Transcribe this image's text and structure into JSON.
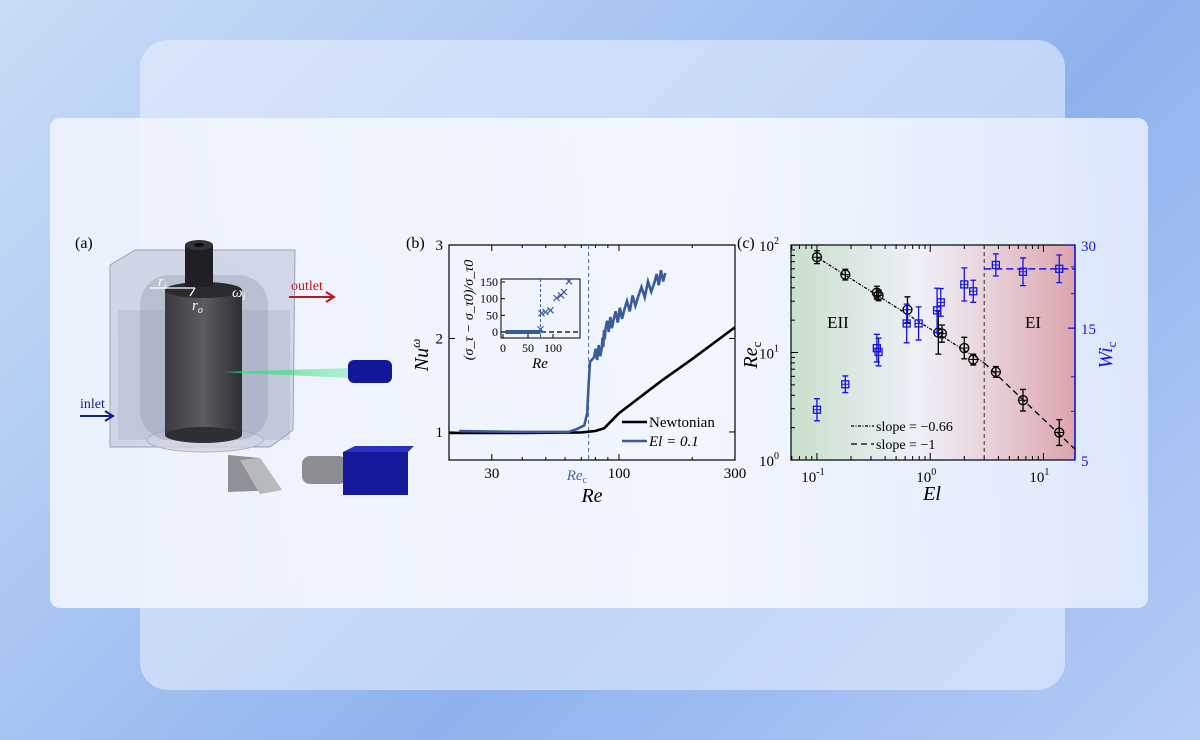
{
  "panel_a": {
    "label": "(a)",
    "r_i": "r",
    "r_i_sub": "i",
    "r_o": "r",
    "r_o_sub": "o",
    "omega": "ω",
    "omega_sub": "i",
    "outlet": "outlet",
    "inlet": "inlet",
    "colors": {
      "outlet": "#c0131c",
      "inlet": "#13208a",
      "laser": "#22d36a",
      "device": "#13189a"
    }
  },
  "chart_data": [
    {
      "id": "b",
      "panel_label": "(b)",
      "type": "line",
      "xlabel": "Re",
      "ylabel": "Nu",
      "ylabel_sup": "ω",
      "xscale": "log",
      "xlim": [
        20,
        300
      ],
      "ylim": [
        0.7,
        3
      ],
      "xticks": [
        30,
        100,
        300
      ],
      "xtick_labels": [
        "30",
        "100",
        "300"
      ],
      "yticks": [
        1,
        2,
        3
      ],
      "ytick_labels": [
        "1",
        "2",
        "3"
      ],
      "vline": {
        "x": 75,
        "label": "Re",
        "label_sub": "c",
        "color": "#4a67a8"
      },
      "legend_position": "bottom-right",
      "series": [
        {
          "name": "Newtonian",
          "color": "#000000",
          "x": [
            20,
            40,
            70,
            80,
            87,
            100,
            150,
            200,
            300
          ],
          "y": [
            0.99,
            0.99,
            0.995,
            1.01,
            1.04,
            1.2,
            1.55,
            1.78,
            2.12
          ]
        },
        {
          "name": "El = 0.1",
          "color": "#3b5a9a",
          "x": [
            22,
            40,
            62,
            67,
            72,
            74,
            75,
            76,
            79,
            85,
            88,
            95,
            105,
            120,
            140,
            155
          ],
          "y": [
            1.01,
            1.0,
            1.0,
            1.03,
            1.07,
            1.2,
            1.5,
            1.75,
            1.8,
            1.9,
            2.1,
            2.2,
            2.3,
            2.45,
            2.6,
            2.7
          ]
        }
      ]
    },
    {
      "id": "b-inset",
      "type": "scatter",
      "xlabel": "Re",
      "ylabel": "(σ_τ − σ_τ0)/σ_τ0",
      "xlim": [
        -4,
        154
      ],
      "ylim": [
        -18,
        159
      ],
      "xticks": [
        0,
        50,
        100
      ],
      "xtick_labels": [
        "0",
        "50",
        "100"
      ],
      "yticks": [
        0,
        50,
        100,
        150
      ],
      "ytick_labels": [
        "0",
        "50",
        "100",
        "150"
      ],
      "vline": {
        "x": 75
      },
      "hline": {
        "y": 0
      },
      "baseline_band": {
        "x": [
          5,
          75
        ],
        "y": 0
      },
      "points": {
        "x": [
          75,
          77,
          85,
          95,
          107,
          116,
          122,
          132
        ],
        "y": [
          8,
          56,
          60,
          65,
          102,
          110,
          120,
          152
        ]
      },
      "color": "#3b5a9a"
    },
    {
      "id": "c",
      "panel_label": "(c)",
      "type": "scatter",
      "xlabel": "El",
      "ylabel": "Re",
      "ylabel_sub": "c",
      "y2label": "Wi",
      "y2label_sub": "c",
      "xscale": "log",
      "yscale": "log",
      "y2scale": "log",
      "xlim": [
        0.059,
        19
      ],
      "ylim": [
        1,
        100
      ],
      "y2lim": [
        5,
        30
      ],
      "xticks": [
        0.1,
        1,
        10
      ],
      "xtick_labels": [
        "10",
        "10",
        "10"
      ],
      "xtick_exps": [
        "-1",
        "0",
        "1"
      ],
      "yticks": [
        1,
        10,
        100
      ],
      "ytick_labels": [
        "10",
        "10",
        "10"
      ],
      "ytick_exps": [
        "0",
        "1",
        "2"
      ],
      "y2ticks": [
        5,
        15,
        30
      ],
      "y2tick_labels": [
        "5",
        "15",
        "30"
      ],
      "region_labels": [
        "EII",
        "EI"
      ],
      "region_boundary": 3.0,
      "colors": {
        "EII": "#cfe3d2",
        "EI": "#e3b1b8",
        "wi": "#1414e6"
      },
      "legend_position": "bottom-center",
      "legend": [
        "slope = −0.66",
        "slope = −1"
      ],
      "fits": [
        {
          "name": "slope = −0.66",
          "x": [
            0.1,
            3.0
          ],
          "y": [
            77,
            8.0
          ]
        },
        {
          "name": "slope = −1",
          "x": [
            3.0,
            19
          ],
          "y": [
            8.0,
            1.26
          ]
        }
      ],
      "wi_plateau": {
        "x": [
          3.0,
          19
        ],
        "y": 24.6
      },
      "series": [
        {
          "axis": "left",
          "marker": "circle-plus",
          "color": "#000000",
          "x": [
            0.1,
            0.178,
            0.338,
            0.35,
            0.63,
            1.18,
            1.27,
            2.0,
            2.4,
            3.8,
            6.6,
            13.8
          ],
          "y": [
            77,
            53,
            36,
            34,
            25,
            15.3,
            15,
            11,
            8.6,
            6.6,
            3.6,
            1.8
          ],
          "err": [
            0.06,
            0.05,
            0.06,
            0.05,
            0.12,
            0.2,
            0.08,
            0.1,
            0.05,
            0.05,
            0.1,
            0.12
          ]
        },
        {
          "axis": "right",
          "marker": "square-plus",
          "color": "#1414e6",
          "x": [
            0.1,
            0.178,
            0.338,
            0.35,
            0.62,
            0.79,
            1.15,
            1.24,
            2.0,
            2.4,
            3.8,
            6.6,
            13.8
          ],
          "y": [
            7.6,
            9.4,
            12.7,
            12.3,
            15.6,
            15.6,
            17.4,
            18.6,
            21.6,
            20.4,
            25.4,
            24.0,
            24.6
          ],
          "err": [
            0.04,
            0.03,
            0.05,
            0.05,
            0.07,
            0.06,
            0.08,
            0.05,
            0.06,
            0.04,
            0.04,
            0.05,
            0.05
          ]
        }
      ]
    }
  ]
}
